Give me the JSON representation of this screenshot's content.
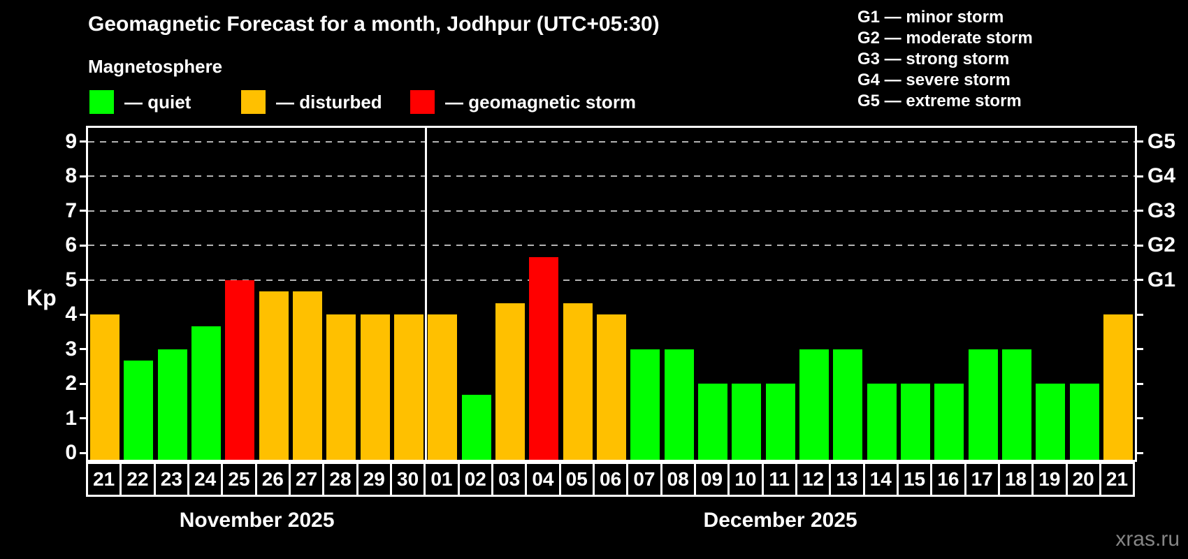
{
  "title": "Geomagnetic Forecast for a month, Jodhpur (UTC+05:30)",
  "subtitle": "Magnetosphere",
  "legend": {
    "items": [
      {
        "key": "quiet",
        "label": "— quiet"
      },
      {
        "key": "disturbed",
        "label": "— disturbed"
      },
      {
        "key": "storm",
        "label": "— geomagnetic storm"
      }
    ]
  },
  "storm_scale_legend": [
    "G1 — minor storm",
    "G2 — moderate storm",
    "G3 — strong storm",
    "G4 — severe storm",
    "G5 — extreme storm"
  ],
  "watermark": "xras.ru",
  "colors": {
    "quiet": "#00ff00",
    "disturbed": "#ffc000",
    "storm": "#ff0000",
    "background": "#000000",
    "axis": "#ffffff",
    "gridline": "#b4b4b4",
    "watermark": "#858585"
  },
  "chart_data": {
    "type": "bar",
    "title": "Geomagnetic Forecast for a month, Jodhpur (UTC+05:30)",
    "ylabel": "Kp",
    "ylim": [
      0,
      9
    ],
    "y_ticks": [
      0,
      1,
      2,
      3,
      4,
      5,
      6,
      7,
      8,
      9
    ],
    "gridlines_kp": [
      5,
      6,
      7,
      8,
      9
    ],
    "grid": "dashed horizontal at G-storm levels only",
    "right_axis_labels": [
      {
        "label": "G1",
        "kp": 5
      },
      {
        "label": "G2",
        "kp": 6
      },
      {
        "label": "G3",
        "kp": 7
      },
      {
        "label": "G4",
        "kp": 8
      },
      {
        "label": "G5",
        "kp": 9
      }
    ],
    "month_spans": [
      {
        "label": "November 2025",
        "count": 10
      },
      {
        "label": "December 2025",
        "count": 21
      }
    ],
    "bars": [
      {
        "day": "21",
        "kp": 4.0,
        "status": "disturbed"
      },
      {
        "day": "22",
        "kp": 2.67,
        "status": "quiet"
      },
      {
        "day": "23",
        "kp": 3.0,
        "status": "quiet"
      },
      {
        "day": "24",
        "kp": 3.67,
        "status": "quiet"
      },
      {
        "day": "25",
        "kp": 5.0,
        "status": "storm"
      },
      {
        "day": "26",
        "kp": 4.67,
        "status": "disturbed"
      },
      {
        "day": "27",
        "kp": 4.67,
        "status": "disturbed"
      },
      {
        "day": "28",
        "kp": 4.0,
        "status": "disturbed"
      },
      {
        "day": "29",
        "kp": 4.0,
        "status": "disturbed"
      },
      {
        "day": "30",
        "kp": 4.0,
        "status": "disturbed"
      },
      {
        "day": "01",
        "kp": 4.0,
        "status": "disturbed"
      },
      {
        "day": "02",
        "kp": 1.67,
        "status": "quiet"
      },
      {
        "day": "03",
        "kp": 4.33,
        "status": "disturbed"
      },
      {
        "day": "04",
        "kp": 5.67,
        "status": "storm"
      },
      {
        "day": "05",
        "kp": 4.33,
        "status": "disturbed"
      },
      {
        "day": "06",
        "kp": 4.0,
        "status": "disturbed"
      },
      {
        "day": "07",
        "kp": 3.0,
        "status": "quiet"
      },
      {
        "day": "08",
        "kp": 3.0,
        "status": "quiet"
      },
      {
        "day": "09",
        "kp": 2.0,
        "status": "quiet"
      },
      {
        "day": "10",
        "kp": 2.0,
        "status": "quiet"
      },
      {
        "day": "11",
        "kp": 2.0,
        "status": "quiet"
      },
      {
        "day": "12",
        "kp": 3.0,
        "status": "quiet"
      },
      {
        "day": "13",
        "kp": 3.0,
        "status": "quiet"
      },
      {
        "day": "14",
        "kp": 2.0,
        "status": "quiet"
      },
      {
        "day": "15",
        "kp": 2.0,
        "status": "quiet"
      },
      {
        "day": "16",
        "kp": 2.0,
        "status": "quiet"
      },
      {
        "day": "17",
        "kp": 3.0,
        "status": "quiet"
      },
      {
        "day": "18",
        "kp": 3.0,
        "status": "quiet"
      },
      {
        "day": "19",
        "kp": 2.0,
        "status": "quiet"
      },
      {
        "day": "20",
        "kp": 2.0,
        "status": "quiet"
      },
      {
        "day": "21",
        "kp": 4.0,
        "status": "disturbed"
      }
    ]
  }
}
